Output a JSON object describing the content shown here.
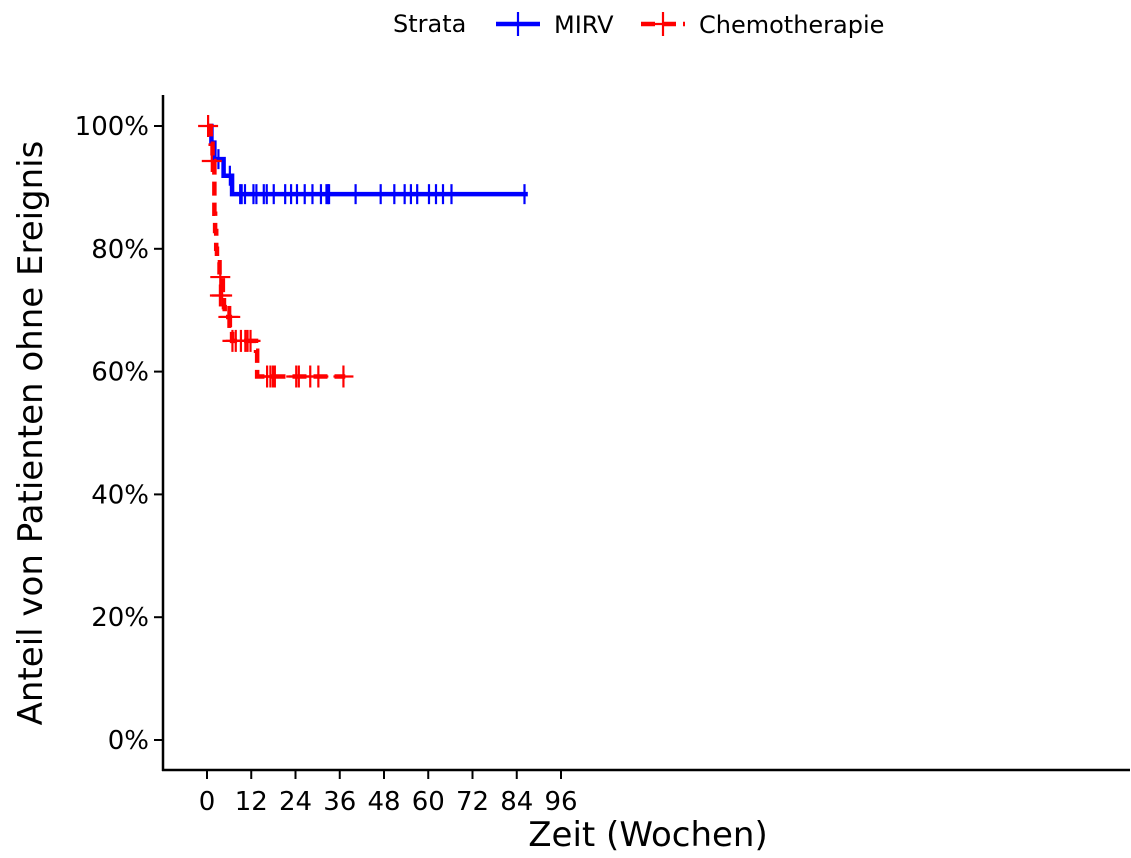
{
  "chart_data": {
    "type": "line",
    "subtype": "kaplan-meier",
    "xlabel": "Zeit (Wochen)",
    "ylabel": "Anteil von Patienten ohne Ereignis",
    "xlim": [
      0,
      96
    ],
    "ylim": [
      0,
      1
    ],
    "x_ticks": [
      0,
      12,
      24,
      36,
      48,
      60,
      72,
      84,
      96
    ],
    "y_ticks": [
      0,
      0.2,
      0.4,
      0.6,
      0.8,
      1.0
    ],
    "y_tick_labels": [
      "0%",
      "20%",
      "40%",
      "60%",
      "80%",
      "100%"
    ],
    "grid": false,
    "legend": {
      "title": "Strata",
      "position": "top"
    },
    "series": [
      {
        "name": "MIRV",
        "color": "#0000ff",
        "linestyle": "solid",
        "steps": [
          [
            0,
            1.0
          ],
          [
            1.2,
            0.973
          ],
          [
            2.0,
            0.946
          ],
          [
            4.5,
            0.919
          ],
          [
            6.8,
            0.889
          ]
        ],
        "end_x": 87,
        "censor": [
          [
            3.1,
            0.946
          ],
          [
            6.2,
            0.919
          ],
          [
            9.0,
            0.889
          ],
          [
            9.4,
            0.889
          ],
          [
            10.3,
            0.889
          ],
          [
            12.6,
            0.889
          ],
          [
            13.4,
            0.889
          ],
          [
            15.4,
            0.889
          ],
          [
            16.2,
            0.889
          ],
          [
            18.1,
            0.889
          ],
          [
            21.2,
            0.889
          ],
          [
            22.8,
            0.889
          ],
          [
            24.4,
            0.889
          ],
          [
            26.5,
            0.889
          ],
          [
            28.6,
            0.889
          ],
          [
            30.9,
            0.889
          ],
          [
            32.4,
            0.889
          ],
          [
            32.8,
            0.889
          ],
          [
            33.1,
            0.889
          ],
          [
            40.3,
            0.889
          ],
          [
            47.1,
            0.889
          ],
          [
            50.8,
            0.889
          ],
          [
            53.6,
            0.889
          ],
          [
            55.3,
            0.889
          ],
          [
            57.0,
            0.889
          ],
          [
            60.2,
            0.889
          ],
          [
            62.1,
            0.889
          ],
          [
            64.0,
            0.889
          ],
          [
            66.3,
            0.889
          ],
          [
            86.1,
            0.889
          ]
        ]
      },
      {
        "name": "Chemotherapie",
        "color": "#ff0000",
        "linestyle": "dashed",
        "steps": [
          [
            0,
            1.0
          ],
          [
            1.0,
            0.971
          ],
          [
            1.5,
            0.943
          ],
          [
            2.0,
            0.857
          ],
          [
            2.2,
            0.829
          ],
          [
            2.5,
            0.8
          ],
          [
            2.7,
            0.778
          ],
          [
            3.4,
            0.754
          ],
          [
            4.3,
            0.729
          ],
          [
            4.6,
            0.705
          ],
          [
            4.8,
            0.689
          ],
          [
            6.2,
            0.672
          ],
          [
            6.8,
            0.65
          ],
          [
            13.3,
            0.634
          ],
          [
            13.6,
            0.592
          ]
        ],
        "end_x": 37.5,
        "censor": [
          [
            0.3,
            1.0
          ],
          [
            1.3,
            0.943
          ],
          [
            3.6,
            0.754
          ],
          [
            3.5,
            0.724
          ],
          [
            4.1,
            0.724
          ],
          [
            5.8,
            0.689
          ],
          [
            6.3,
            0.689
          ],
          [
            6.9,
            0.65
          ],
          [
            7.8,
            0.65
          ],
          [
            9.2,
            0.65
          ],
          [
            10.4,
            0.65
          ],
          [
            11.0,
            0.65
          ],
          [
            11.8,
            0.65
          ],
          [
            16.3,
            0.592
          ],
          [
            17.2,
            0.592
          ],
          [
            17.9,
            0.592
          ],
          [
            18.4,
            0.592
          ],
          [
            24.2,
            0.592
          ],
          [
            24.9,
            0.592
          ],
          [
            28.0,
            0.592
          ],
          [
            30.2,
            0.592
          ],
          [
            37.0,
            0.592
          ]
        ]
      }
    ]
  }
}
